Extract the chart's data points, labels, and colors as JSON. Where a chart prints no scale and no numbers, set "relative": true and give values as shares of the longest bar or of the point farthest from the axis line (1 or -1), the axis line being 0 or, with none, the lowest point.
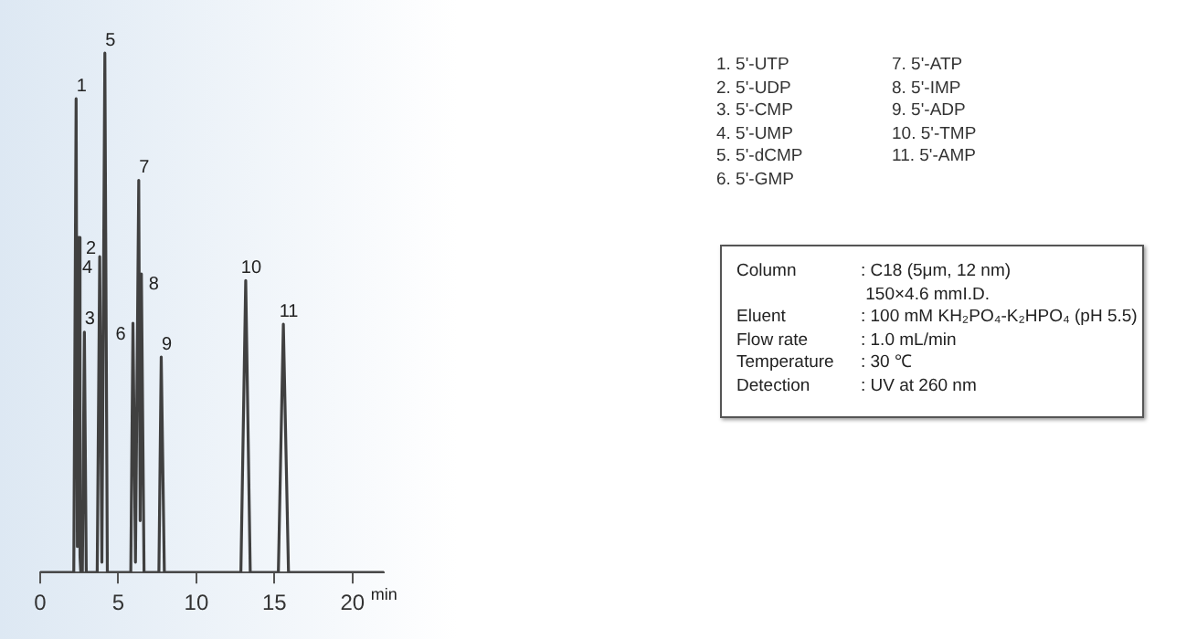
{
  "chart_data": {
    "type": "line",
    "relative": true,
    "xlabel": "min",
    "xlim": [
      0,
      22
    ],
    "xticks": [
      0,
      5,
      10,
      15,
      20
    ],
    "grid": false,
    "legend": false,
    "marker": "none",
    "line_style": "solid",
    "x": [
      0,
      2.15,
      2.3,
      2.38,
      2.46,
      2.55,
      2.6,
      2.7,
      2.83,
      2.95,
      3.65,
      3.81,
      3.95,
      4.14,
      4.3,
      5.8,
      5.94,
      6.1,
      6.31,
      6.4,
      6.48,
      6.65,
      7.6,
      7.75,
      7.95,
      12.85,
      13.16,
      13.45,
      15.25,
      15.57,
      15.9,
      22
    ],
    "series": [
      {
        "color": "#404040",
        "values": [
          0,
          0,
          0.912,
          0.05,
          0.645,
          0.03,
          0,
          0,
          0.463,
          0,
          0,
          0.608,
          0.02,
          1,
          0,
          0,
          0.48,
          0.02,
          0.755,
          0.1,
          0.575,
          0,
          0,
          0.415,
          0,
          0,
          0.562,
          0,
          0,
          0.478,
          0,
          0
        ]
      }
    ],
    "annotations": [
      {
        "text": "1",
        "x": 2.3,
        "y": 0.912
      },
      {
        "text": "2",
        "x": 2.46,
        "y": 0.645
      },
      {
        "text": "3",
        "x": 2.83,
        "y": 0.463
      },
      {
        "text": "4",
        "x": 3.81,
        "y": 0.608
      },
      {
        "text": "5",
        "x": 4.14,
        "y": 1
      },
      {
        "text": "6",
        "x": 5.94,
        "y": 0.48
      },
      {
        "text": "7",
        "x": 6.31,
        "y": 0.755
      },
      {
        "text": "8",
        "x": 6.48,
        "y": 0.575
      },
      {
        "text": "9",
        "x": 7.75,
        "y": 0.415
      },
      {
        "text": "10",
        "x": 13.16,
        "y": 0.562
      },
      {
        "text": "11",
        "x": 15.57,
        "y": 0.478
      },
      "1. 5'-UTP",
      "2. 5'-UDP",
      "3. 5'-CMP",
      "4. 5'-UMP",
      "5. 5'-dCMP",
      "6. 5'-GMP",
      "7. 5'-ATP",
      "8. 5'-IMP",
      "9. 5'-ADP",
      "10. 5'-TMP",
      "11. 5'-AMP",
      "Column : C18 (5μm, 12 nm)",
      "150×4.6 mmI.D.",
      "Eluent : 100 mM KH₂PO₄-K₂HPO₄ (pH 5.5)",
      "Flow rate : 1.0 mL/min",
      "Temperature : 30 ℃",
      "Detection : UV at 260 nm"
    ]
  }
}
